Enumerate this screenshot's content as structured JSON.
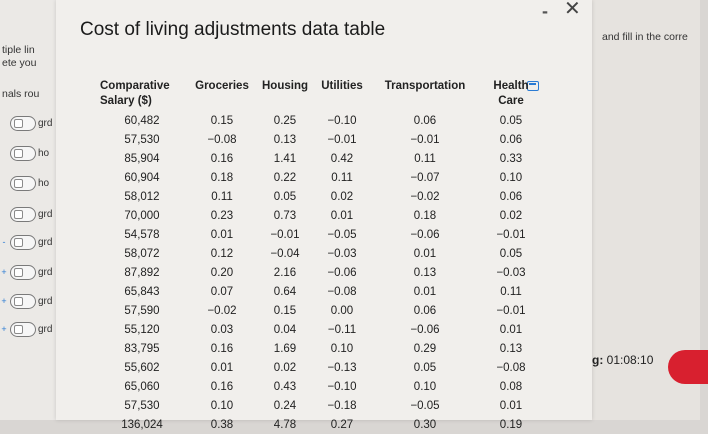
{
  "background_left": {
    "fragments": [
      "tiple lin",
      "ete you",
      "nals rou"
    ],
    "options": [
      "grd",
      "ho",
      "ho",
      "grd",
      "grd",
      "grd",
      "grd",
      "grd"
    ]
  },
  "background_right": {
    "hint": "and fill in the corre",
    "timer_label": "g:",
    "timer_value": "01:08:10"
  },
  "popup": {
    "title": "Cost of living adjustments data table",
    "minimize_glyph": "-",
    "close_glyph": "✕"
  },
  "table": {
    "headers": [
      "Comparative Salary ($)",
      "Groceries",
      "Housing",
      "Utilities",
      "Transportation",
      "Health Care"
    ],
    "rows": [
      [
        "60,482",
        "0.15",
        "0.25",
        "−0.10",
        "0.06",
        "0.05"
      ],
      [
        "57,530",
        "−0.08",
        "0.13",
        "−0.01",
        "−0.01",
        "0.06"
      ],
      [
        "85,904",
        "0.16",
        "1.41",
        "0.42",
        "0.11",
        "0.33"
      ],
      [
        "60,904",
        "0.18",
        "0.22",
        "0.11",
        "−0.07",
        "0.10"
      ],
      [
        "58,012",
        "0.11",
        "0.05",
        "0.02",
        "−0.02",
        "0.06"
      ],
      [
        "70,000",
        "0.23",
        "0.73",
        "0.01",
        "0.18",
        "0.02"
      ],
      [
        "54,578",
        "0.01",
        "−0.01",
        "−0.05",
        "−0.06",
        "−0.01"
      ],
      [
        "58,072",
        "0.12",
        "−0.04",
        "−0.03",
        "0.01",
        "0.05"
      ],
      [
        "87,892",
        "0.20",
        "2.16",
        "−0.06",
        "0.13",
        "−0.03"
      ],
      [
        "65,843",
        "0.07",
        "0.64",
        "−0.08",
        "0.01",
        "0.11"
      ],
      [
        "57,590",
        "−0.02",
        "0.15",
        "0.00",
        "0.06",
        "−0.01"
      ],
      [
        "55,120",
        "0.03",
        "0.04",
        "−0.11",
        "−0.06",
        "0.01"
      ],
      [
        "83,795",
        "0.16",
        "1.69",
        "0.10",
        "0.29",
        "0.13"
      ],
      [
        "55,602",
        "0.01",
        "0.02",
        "−0.13",
        "0.05",
        "−0.08"
      ],
      [
        "65,060",
        "0.16",
        "0.43",
        "−0.10",
        "0.10",
        "0.08"
      ],
      [
        "57,530",
        "0.10",
        "0.24",
        "−0.18",
        "−0.05",
        "0.01"
      ],
      [
        "136,024",
        "0.38",
        "4.78",
        "0.27",
        "0.30",
        "0.19"
      ]
    ]
  }
}
